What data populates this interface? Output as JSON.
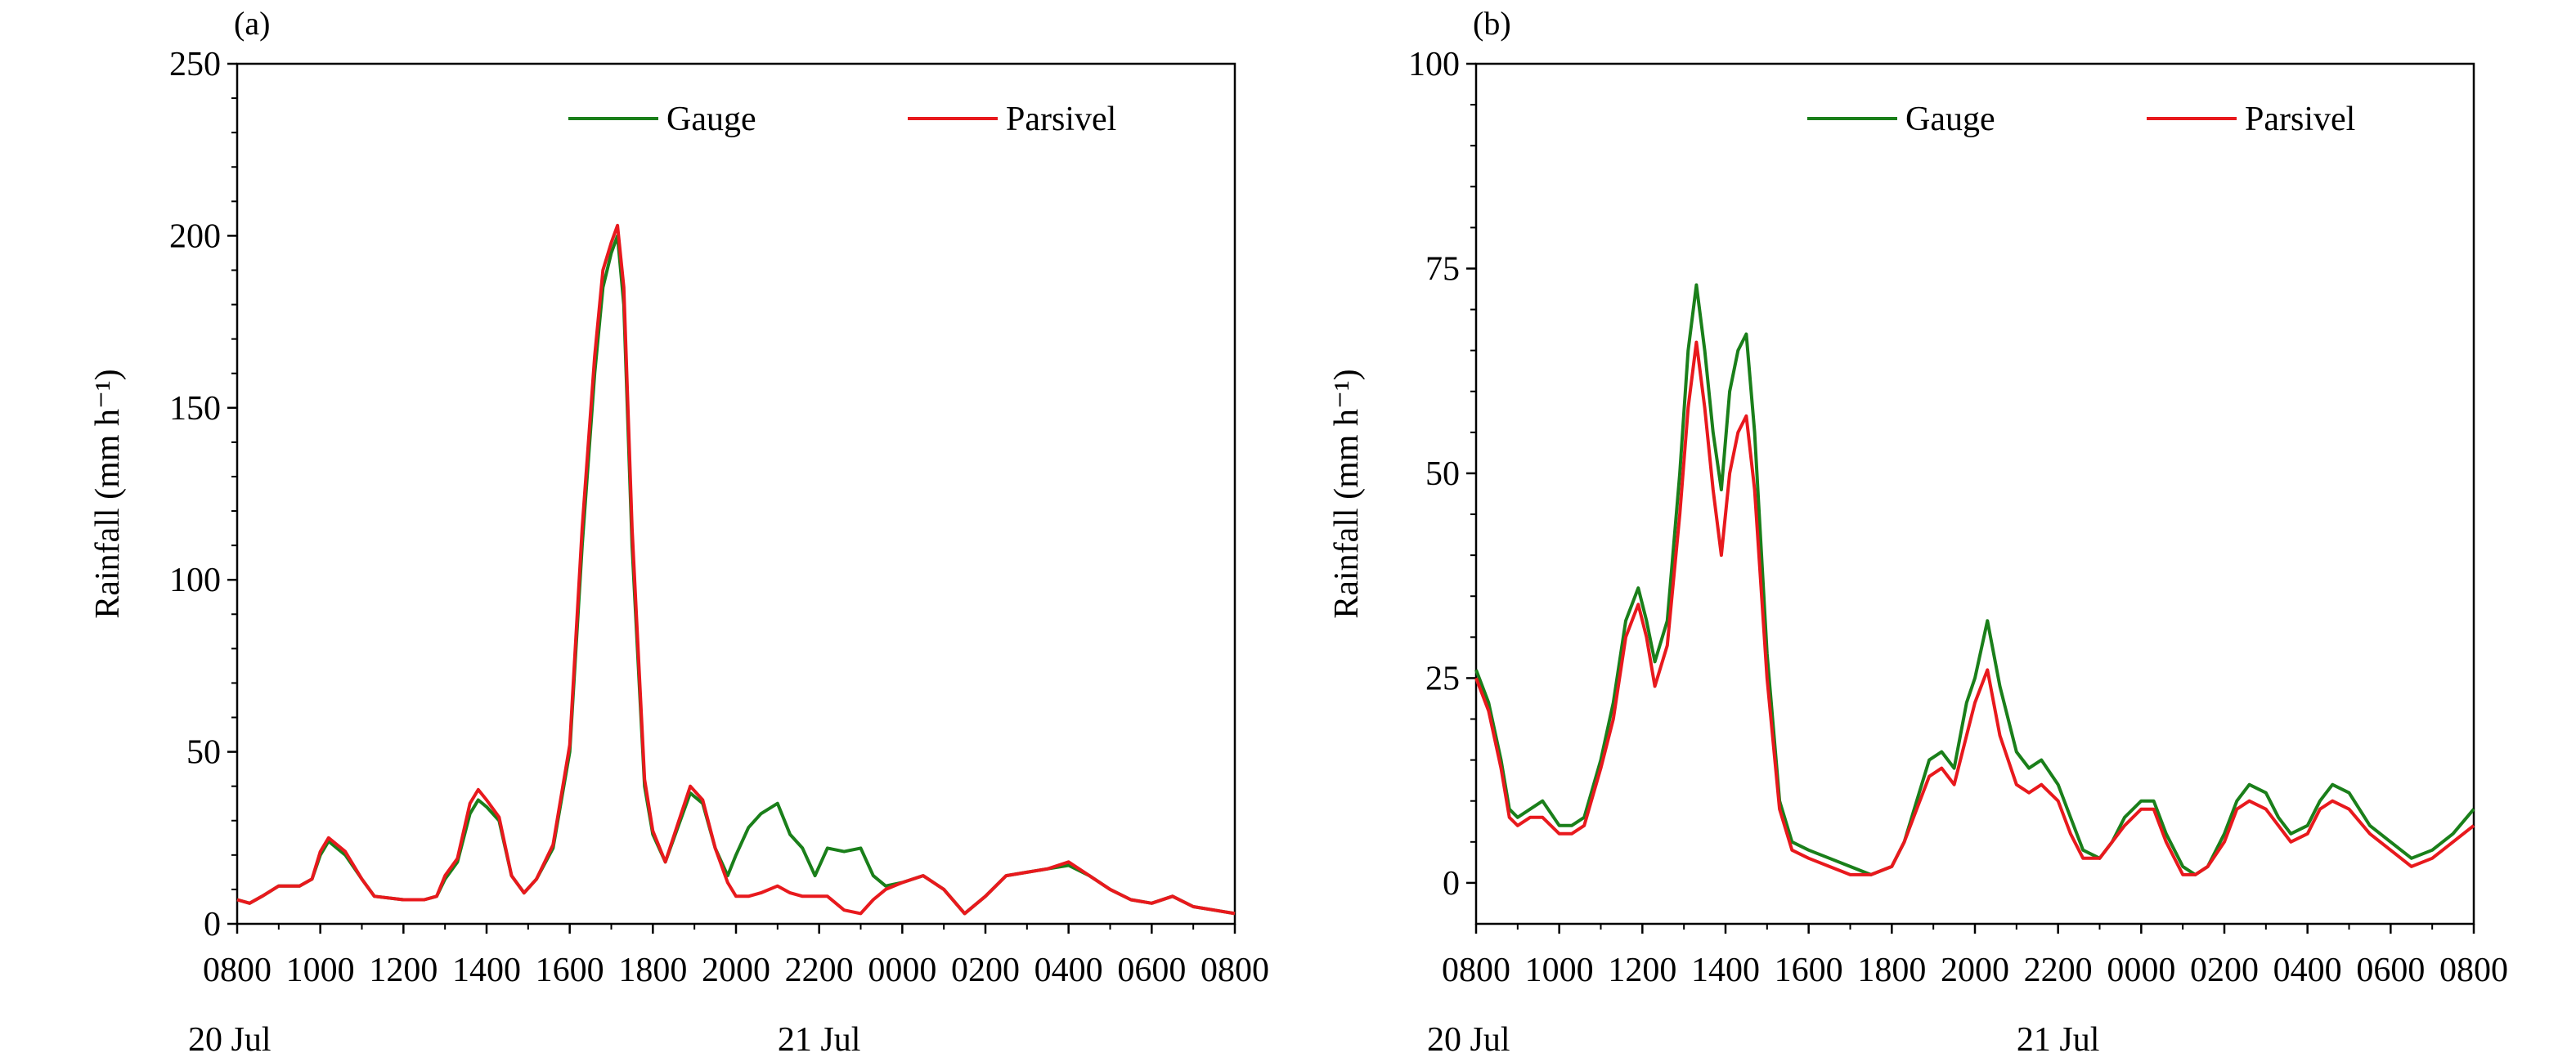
{
  "colors": {
    "Gauge": "#1a7f1a",
    "Parsivel": "#e8191d"
  },
  "chart_data": [
    {
      "type": "line",
      "panel_label": "(a)",
      "title": "",
      "xlabel": "",
      "ylabel": "Rainfall (mm h⁻¹)",
      "ylim": [
        0,
        250
      ],
      "yticks": [
        0,
        50,
        100,
        150,
        200,
        250
      ],
      "xlim": [
        8,
        32
      ],
      "xtick_labels": [
        "0800",
        "1000",
        "1200",
        "1400",
        "1600",
        "1800",
        "2000",
        "2200",
        "0000",
        "0200",
        "0400",
        "0600",
        "0800"
      ],
      "date_labels": [
        {
          "label": "20 Jul",
          "at": 8
        },
        {
          "label": "21 Jul",
          "at": 22
        }
      ],
      "grid": false,
      "legend": "top",
      "series": [
        {
          "name": "Gauge",
          "x": [
            8,
            8.3,
            8.6,
            9,
            9.5,
            9.8,
            10,
            10.2,
            10.4,
            10.6,
            11,
            11.3,
            12,
            12.5,
            12.8,
            13,
            13.3,
            13.6,
            13.8,
            14,
            14.3,
            14.6,
            14.9,
            15.2,
            15.6,
            16,
            16.3,
            16.6,
            16.8,
            17,
            17.15,
            17.3,
            17.5,
            17.8,
            18,
            18.3,
            18.6,
            18.9,
            19.2,
            19.5,
            19.8,
            20,
            20.3,
            20.6,
            21,
            21.3,
            21.6,
            21.9,
            22.2,
            22.6,
            23,
            23.3,
            23.6,
            24,
            24.5,
            25,
            25.5,
            26,
            26.5,
            27,
            27.5,
            28,
            28.5,
            29,
            29.5,
            30,
            30.5,
            31,
            31.5,
            32
          ],
          "values": [
            7,
            6,
            8,
            11,
            11,
            13,
            20,
            24,
            22,
            20,
            13,
            8,
            7,
            7,
            8,
            13,
            18,
            32,
            36,
            34,
            30,
            14,
            9,
            13,
            22,
            50,
            110,
            160,
            185,
            195,
            200,
            180,
            110,
            40,
            26,
            18,
            28,
            38,
            35,
            22,
            14,
            20,
            28,
            32,
            35,
            26,
            22,
            14,
            22,
            21,
            22,
            14,
            11,
            12,
            14,
            10,
            3,
            8,
            14,
            15,
            16,
            17,
            14,
            10,
            7,
            6,
            8,
            5,
            4,
            3
          ]
        },
        {
          "name": "Parsivel",
          "x": [
            8,
            8.3,
            8.6,
            9,
            9.5,
            9.8,
            10,
            10.2,
            10.4,
            10.6,
            11,
            11.3,
            12,
            12.5,
            12.8,
            13,
            13.3,
            13.6,
            13.8,
            14,
            14.3,
            14.6,
            14.9,
            15.2,
            15.6,
            16,
            16.3,
            16.6,
            16.8,
            17,
            17.15,
            17.3,
            17.5,
            17.8,
            18,
            18.3,
            18.6,
            18.9,
            19.2,
            19.5,
            19.8,
            20,
            20.3,
            20.6,
            21,
            21.3,
            21.6,
            21.9,
            22.2,
            22.6,
            23,
            23.3,
            23.6,
            24,
            24.5,
            25,
            25.5,
            26,
            26.5,
            27,
            27.5,
            28,
            28.5,
            29,
            29.5,
            30,
            30.5,
            31,
            31.5,
            32
          ],
          "values": [
            7,
            6,
            8,
            11,
            11,
            13,
            21,
            25,
            23,
            21,
            13,
            8,
            7,
            7,
            8,
            14,
            19,
            35,
            39,
            36,
            31,
            14,
            9,
            13,
            23,
            52,
            115,
            165,
            190,
            198,
            203,
            185,
            115,
            42,
            27,
            18,
            29,
            40,
            36,
            22,
            12,
            8,
            8,
            9,
            11,
            9,
            8,
            8,
            8,
            4,
            3,
            7,
            10,
            12,
            14,
            10,
            3,
            8,
            14,
            15,
            16,
            18,
            14,
            10,
            7,
            6,
            8,
            5,
            4,
            3
          ]
        }
      ]
    },
    {
      "type": "line",
      "panel_label": "(b)",
      "title": "",
      "xlabel": "",
      "ylabel": "Rainfall (mm h⁻¹)",
      "ylim": [
        -5,
        100
      ],
      "yticks": [
        0,
        25,
        50,
        75,
        100
      ],
      "xlim": [
        8,
        32
      ],
      "xtick_labels": [
        "0800",
        "1000",
        "1200",
        "1400",
        "1600",
        "1800",
        "2000",
        "2200",
        "0000",
        "0200",
        "0400",
        "0600",
        "0800"
      ],
      "date_labels": [
        {
          "label": "20 Jul",
          "at": 8
        },
        {
          "label": "21 Jul",
          "at": 22
        }
      ],
      "grid": false,
      "legend": "top",
      "series": [
        {
          "name": "Gauge",
          "x": [
            8,
            8.3,
            8.6,
            8.8,
            9,
            9.3,
            9.6,
            10,
            10.3,
            10.6,
            11,
            11.3,
            11.6,
            11.9,
            12.1,
            12.3,
            12.6,
            12.9,
            13.1,
            13.3,
            13.5,
            13.7,
            13.9,
            14.1,
            14.3,
            14.5,
            14.7,
            15,
            15.3,
            15.6,
            16,
            16.5,
            17,
            17.5,
            18,
            18.3,
            18.6,
            18.9,
            19.2,
            19.5,
            19.8,
            20,
            20.3,
            20.6,
            21,
            21.3,
            21.6,
            22,
            22.3,
            22.6,
            23,
            23.3,
            23.6,
            24,
            24.3,
            24.6,
            25,
            25.3,
            25.6,
            26,
            26.3,
            26.6,
            27,
            27.3,
            27.6,
            28,
            28.3,
            28.6,
            29,
            29.5,
            30,
            30.5,
            31,
            31.5,
            32
          ],
          "values": [
            26,
            22,
            15,
            9,
            8,
            9,
            10,
            7,
            7,
            8,
            15,
            22,
            32,
            36,
            32,
            27,
            32,
            50,
            65,
            73,
            65,
            55,
            48,
            60,
            65,
            67,
            55,
            28,
            10,
            5,
            4,
            3,
            2,
            1,
            2,
            5,
            10,
            15,
            16,
            14,
            22,
            25,
            32,
            24,
            16,
            14,
            15,
            12,
            8,
            4,
            3,
            5,
            8,
            10,
            10,
            6,
            2,
            1,
            2,
            6,
            10,
            12,
            11,
            8,
            6,
            7,
            10,
            12,
            11,
            7,
            5,
            3,
            4,
            6,
            9
          ]
        },
        {
          "name": "Parsivel",
          "x": [
            8,
            8.3,
            8.6,
            8.8,
            9,
            9.3,
            9.6,
            10,
            10.3,
            10.6,
            11,
            11.3,
            11.6,
            11.9,
            12.1,
            12.3,
            12.6,
            12.9,
            13.1,
            13.3,
            13.5,
            13.7,
            13.9,
            14.1,
            14.3,
            14.5,
            14.7,
            15,
            15.3,
            15.6,
            16,
            16.5,
            17,
            17.5,
            18,
            18.3,
            18.6,
            18.9,
            19.2,
            19.5,
            19.8,
            20,
            20.3,
            20.6,
            21,
            21.3,
            21.6,
            22,
            22.3,
            22.6,
            23,
            23.3,
            23.6,
            24,
            24.3,
            24.6,
            25,
            25.3,
            25.6,
            26,
            26.3,
            26.6,
            27,
            27.3,
            27.6,
            28,
            28.3,
            28.6,
            29,
            29.5,
            30,
            30.5,
            31,
            31.5,
            32
          ],
          "values": [
            25,
            21,
            14,
            8,
            7,
            8,
            8,
            6,
            6,
            7,
            14,
            20,
            30,
            34,
            30,
            24,
            29,
            45,
            58,
            66,
            58,
            48,
            40,
            50,
            55,
            57,
            48,
            25,
            9,
            4,
            3,
            2,
            1,
            1,
            2,
            5,
            9,
            13,
            14,
            12,
            18,
            22,
            26,
            18,
            12,
            11,
            12,
            10,
            6,
            3,
            3,
            5,
            7,
            9,
            9,
            5,
            1,
            1,
            2,
            5,
            9,
            10,
            9,
            7,
            5,
            6,
            9,
            10,
            9,
            6,
            4,
            2,
            3,
            5,
            7
          ]
        }
      ]
    }
  ]
}
